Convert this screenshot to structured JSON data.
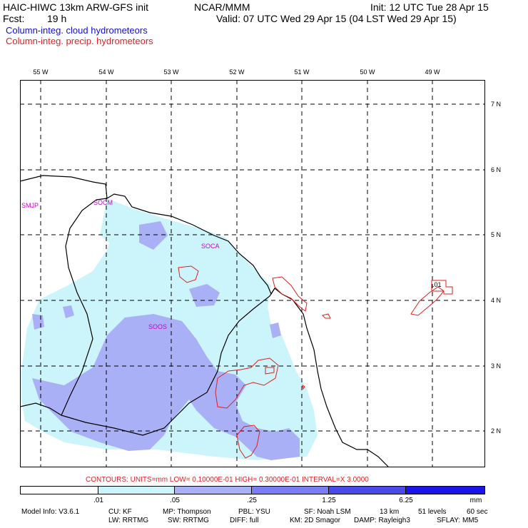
{
  "header": {
    "model_title": "HAIC-HIWC 13km ARW-GFS init",
    "org": "NCAR/MMM",
    "init": "Init: 12 UTC Tue 28 Apr 15",
    "fcst_label": "Fcst:",
    "fcst_value": "19 h",
    "valid": "Valid: 07 UTC Wed 29 Apr 15 (04 LST Wed 29 Apr 15)"
  },
  "legend": {
    "cloud": "Column-integ. cloud hydrometeors",
    "precip": "Column-integ. precip. hydrometeors"
  },
  "map": {
    "lon_labels": [
      "55 W",
      "54 W",
      "53 W",
      "52 W",
      "51 W",
      "50 W",
      "49 W"
    ],
    "lat_labels": [
      "7 N",
      "6 N",
      "5 N",
      "4 N",
      "3 N",
      "2 N"
    ],
    "stations": [
      "SMJP",
      "SOCM",
      "SOCA",
      "SOOS"
    ],
    "contour_value": ".01",
    "colors": {
      "ocean_line": "#000000",
      "grid": "#000000",
      "contour": "#dd2222",
      "fill_light": "#ccf4fb",
      "fill_medium": "#aab0f6"
    }
  },
  "contours_note": "CONTOURS:  UNITS=mm  LOW= 0.10000E-01  HIGH= 0.30000E-01  INTERVAL=X  3.0000",
  "colorbar": {
    "labels": [
      ".01",
      ".05",
      ".25",
      "1.25",
      "6.25"
    ],
    "units": "mm",
    "colors": [
      "#ffffff",
      "#ccf4fb",
      "#aab0f6",
      "#7a7ef0",
      "#4a4ae6",
      "#1a14e6"
    ]
  },
  "model_info": {
    "line1": [
      "Model Info: V3.6.1",
      "CU: KF",
      "MP: Thompson",
      "PBL: YSU",
      "SF: Noah LSM",
      "13 km",
      "51 levels",
      "60 sec"
    ],
    "line2": [
      "LW: RRTMG",
      "SW: RRTMG",
      "DIFF: full",
      "KM: 2D Smagor",
      "DAMP: Rayleigh3",
      "SFLAY: MM5"
    ]
  }
}
